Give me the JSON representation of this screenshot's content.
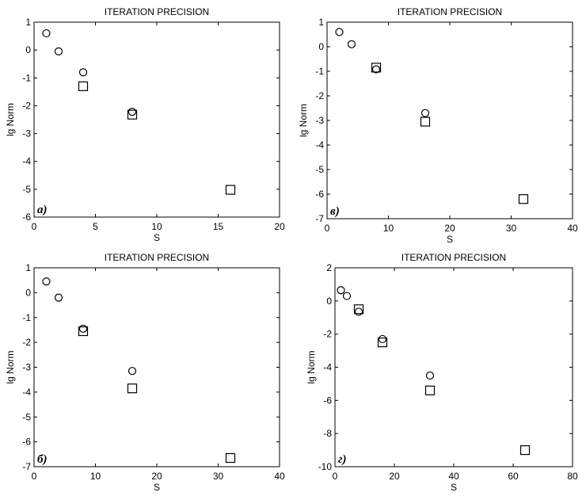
{
  "chart_data": [
    {
      "panel": "a",
      "panel_label": "а)",
      "type": "scatter",
      "title": "ITERATION PRECISION",
      "xlabel": "S",
      "ylabel": "lg Norm",
      "xlim": [
        0,
        20
      ],
      "ylim": [
        -6,
        1
      ],
      "xticks": [
        0,
        5,
        10,
        15,
        20
      ],
      "yticks": [
        1,
        0,
        -1,
        -2,
        -3,
        -4,
        -5,
        -6
      ],
      "grid": false,
      "series": [
        {
          "marker": "circle",
          "points": [
            [
              1,
              0.6
            ],
            [
              2,
              -0.05
            ],
            [
              4,
              -0.8
            ],
            [
              8,
              -2.22
            ]
          ]
        },
        {
          "marker": "square",
          "points": [
            [
              4,
              -1.3
            ],
            [
              8,
              -2.32
            ],
            [
              16,
              -5.02
            ]
          ]
        }
      ]
    },
    {
      "panel": "b",
      "panel_label": "в)",
      "type": "scatter",
      "title": "ITERATION PRECISION",
      "xlabel": "S",
      "ylabel": "lg Norm",
      "xlim": [
        0,
        40
      ],
      "ylim": [
        -7,
        1
      ],
      "xticks": [
        0,
        10,
        20,
        30,
        40
      ],
      "yticks": [
        1,
        0,
        -1,
        -2,
        -3,
        -4,
        -5,
        -6,
        -7
      ],
      "grid": false,
      "series": [
        {
          "marker": "circle",
          "points": [
            [
              2,
              0.6
            ],
            [
              4,
              0.1
            ],
            [
              8,
              -0.92
            ],
            [
              16,
              -2.7
            ]
          ]
        },
        {
          "marker": "square",
          "points": [
            [
              8,
              -0.85
            ],
            [
              16,
              -3.05
            ],
            [
              32,
              -6.2
            ]
          ]
        }
      ]
    },
    {
      "panel": "c",
      "panel_label": "б)",
      "type": "scatter",
      "title": "ITERATION PRECISION",
      "xlabel": "S",
      "ylabel": "lg Norm",
      "xlim": [
        0,
        40
      ],
      "ylim": [
        -7,
        1
      ],
      "xticks": [
        0,
        10,
        20,
        30,
        40
      ],
      "yticks": [
        1,
        0,
        -1,
        -2,
        -3,
        -4,
        -5,
        -6,
        -7
      ],
      "grid": false,
      "series": [
        {
          "marker": "circle",
          "points": [
            [
              2,
              0.45
            ],
            [
              4,
              -0.2
            ],
            [
              8,
              -1.45
            ],
            [
              16,
              -3.15
            ]
          ]
        },
        {
          "marker": "square",
          "points": [
            [
              8,
              -1.55
            ],
            [
              16,
              -3.85
            ],
            [
              32,
              -6.65
            ]
          ]
        }
      ]
    },
    {
      "panel": "d",
      "panel_label": "г)",
      "type": "scatter",
      "title": "ITERATION PRECISION",
      "xlabel": "S",
      "ylabel": "lg Norm",
      "xlim": [
        0,
        80
      ],
      "ylim": [
        -10,
        2
      ],
      "xticks": [
        0,
        20,
        40,
        60,
        80
      ],
      "yticks": [
        2,
        0,
        -2,
        -4,
        -6,
        -8,
        -10
      ],
      "grid": false,
      "series": [
        {
          "marker": "circle",
          "points": [
            [
              2,
              0.65
            ],
            [
              4,
              0.3
            ],
            [
              8,
              -0.65
            ],
            [
              16,
              -2.3
            ],
            [
              32,
              -4.5
            ]
          ]
        },
        {
          "marker": "square",
          "points": [
            [
              8,
              -0.5
            ],
            [
              16,
              -2.5
            ],
            [
              32,
              -5.4
            ],
            [
              64,
              -9.0
            ]
          ]
        }
      ]
    }
  ]
}
